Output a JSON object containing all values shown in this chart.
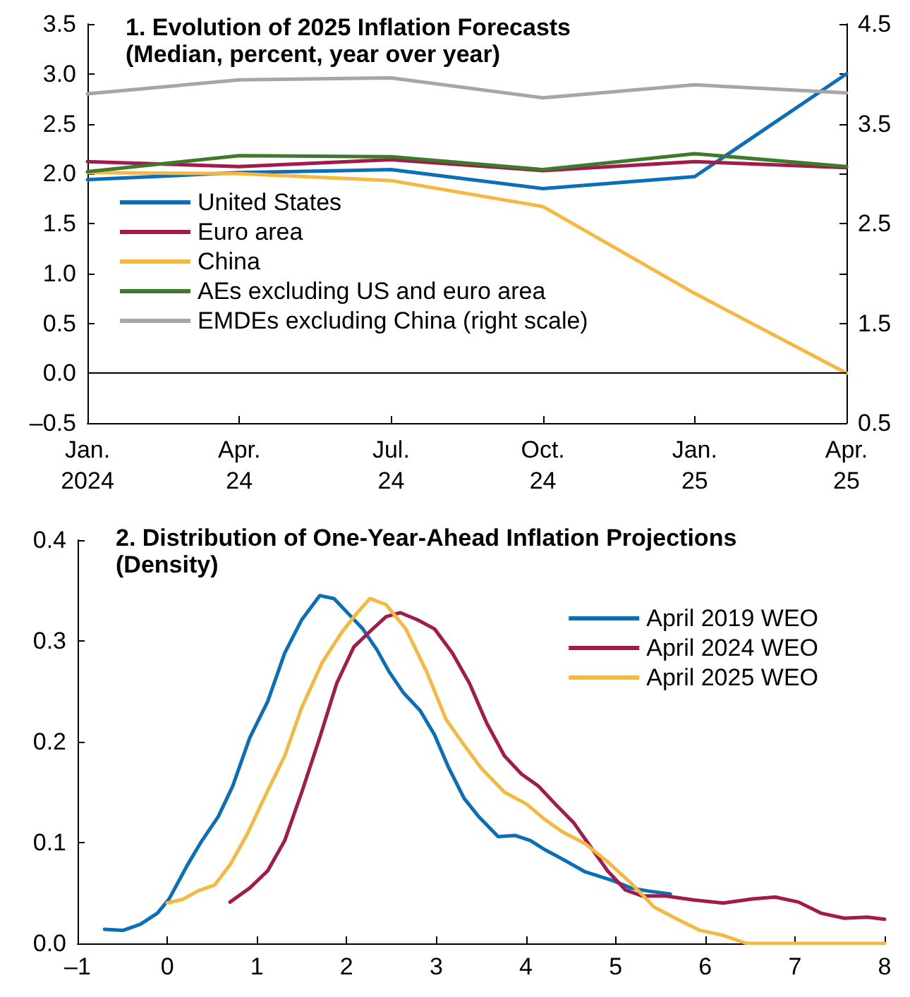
{
  "chart_data": [
    {
      "type": "line",
      "title": "1. Evolution of 2025 Inflation Forecasts",
      "subtitle": "(Median, percent, year over year)",
      "categories": [
        "Jan.\n2024",
        "Apr.\n24",
        "Jul.\n24",
        "Oct.\n24",
        "Jan.\n25",
        "Apr.\n25"
      ],
      "series": [
        {
          "name": "United States",
          "color": "#0b6fb8",
          "values": [
            1.94,
            2.01,
            2.04,
            1.85,
            1.97,
            3.0
          ]
        },
        {
          "name": "Euro area",
          "color": "#a31a4d",
          "values": [
            2.12,
            2.07,
            2.14,
            2.03,
            2.12,
            2.06
          ]
        },
        {
          "name": "China",
          "color": "#f5b841",
          "values": [
            2.01,
            2.0,
            1.93,
            1.67,
            0.8,
            0.0
          ]
        },
        {
          "name": "AEs excluding US and euro area",
          "color": "#3d7a2b",
          "values": [
            2.02,
            2.18,
            2.17,
            2.04,
            2.2,
            2.07
          ]
        },
        {
          "name": "EMDEs excluding China (right scale)",
          "color": "#a6a6a6",
          "axis": "y2",
          "values": [
            3.8,
            3.94,
            3.96,
            3.76,
            3.89,
            3.81
          ]
        }
      ],
      "ylim": [
        -0.5,
        3.5
      ],
      "yticks": [
        {
          "value": -0.5,
          "label": "–0.5"
        },
        {
          "value": 0,
          "label": "0.0"
        },
        0.5,
        {
          "value": 1,
          "label": "1.0"
        },
        1.5,
        {
          "value": 2,
          "label": "2.0"
        },
        2.5,
        {
          "value": 3,
          "label": "3.0"
        },
        3.5
      ],
      "y2lim": [
        0.5,
        4.5
      ],
      "y2ticks": [
        0.5,
        {
          "value": 1,
          "label": null
        },
        1.5,
        {
          "value": 2,
          "label": null
        },
        2.5,
        {
          "value": 3,
          "label": null
        },
        3.5,
        {
          "value": 4,
          "label": null
        },
        4.5
      ],
      "ref_lines": [
        {
          "axis": "y",
          "value": 0,
          "color": "#000000"
        }
      ],
      "grid": false,
      "legend": "left",
      "marker": "none",
      "line_style": "solid"
    },
    {
      "type": "line",
      "title": "2. Distribution of One-Year-Ahead Inflation Projections",
      "subtitle": "(Density)",
      "series": [
        {
          "name": "April 2019 WEO",
          "color": "#0b6fb8",
          "x": [
            -0.7,
            -0.49,
            -0.3,
            -0.11,
            0.02,
            0.22,
            0.38,
            0.57,
            0.73,
            0.92,
            1.12,
            1.31,
            1.5,
            1.7,
            1.86,
            2.02,
            2.18,
            2.34,
            2.47,
            2.63,
            2.82,
            2.98,
            3.14,
            3.31,
            3.47,
            3.69,
            3.88,
            4.05,
            4.21,
            4.4,
            4.66,
            4.98,
            5.17,
            5.36,
            5.61
          ],
          "values": [
            0.014,
            0.013,
            0.019,
            0.03,
            0.044,
            0.077,
            0.101,
            0.126,
            0.156,
            0.204,
            0.24,
            0.288,
            0.321,
            0.345,
            0.342,
            0.327,
            0.312,
            0.291,
            0.27,
            0.249,
            0.231,
            0.207,
            0.174,
            0.144,
            0.126,
            0.106,
            0.107,
            0.102,
            0.093,
            0.084,
            0.071,
            0.062,
            0.055,
            0.052,
            0.049
          ]
        },
        {
          "name": "April 2024 WEO",
          "color": "#a31a4d",
          "x": [
            0.7,
            0.92,
            1.12,
            1.31,
            1.5,
            1.7,
            1.89,
            2.08,
            2.28,
            2.44,
            2.6,
            2.79,
            2.98,
            3.18,
            3.37,
            3.56,
            3.76,
            3.95,
            4.14,
            4.33,
            4.53,
            4.72,
            4.91,
            5.11,
            5.3,
            5.56,
            5.88,
            6.2,
            6.52,
            6.78,
            7.04,
            7.29,
            7.55,
            7.81,
            8.0
          ],
          "values": [
            0.041,
            0.055,
            0.072,
            0.102,
            0.15,
            0.204,
            0.258,
            0.294,
            0.311,
            0.324,
            0.328,
            0.321,
            0.312,
            0.288,
            0.258,
            0.219,
            0.186,
            0.168,
            0.156,
            0.138,
            0.12,
            0.096,
            0.072,
            0.053,
            0.047,
            0.047,
            0.043,
            0.04,
            0.044,
            0.046,
            0.041,
            0.03,
            0.025,
            0.026,
            0.024
          ]
        },
        {
          "name": "April 2025 WEO",
          "color": "#f5b841",
          "x": [
            0.0,
            0.18,
            0.34,
            0.53,
            0.7,
            0.89,
            1.08,
            1.31,
            1.5,
            1.73,
            1.95,
            2.11,
            2.26,
            2.44,
            2.66,
            2.89,
            3.11,
            3.3,
            3.5,
            3.76,
            4.01,
            4.21,
            4.4,
            4.66,
            4.91,
            5.17,
            5.43,
            5.69,
            5.94,
            6.2,
            6.46,
            8.0
          ],
          "values": [
            0.04,
            0.044,
            0.052,
            0.058,
            0.078,
            0.108,
            0.144,
            0.186,
            0.234,
            0.279,
            0.309,
            0.327,
            0.342,
            0.336,
            0.312,
            0.27,
            0.222,
            0.198,
            0.174,
            0.15,
            0.138,
            0.123,
            0.111,
            0.099,
            0.081,
            0.06,
            0.036,
            0.024,
            0.013,
            0.008,
            0.0,
            0.0
          ]
        }
      ],
      "xlim": [
        -1,
        8
      ],
      "xticks": [
        {
          "value": -1,
          "label": "–1"
        },
        0,
        1,
        2,
        3,
        4,
        5,
        6,
        7,
        8
      ],
      "ylim": [
        0,
        0.4
      ],
      "yticks": [
        {
          "value": 0,
          "label": "0.0"
        },
        0.1,
        0.2,
        0.3,
        0.4
      ],
      "grid": false,
      "legend": "top right",
      "marker": "none",
      "line_style": "solid"
    }
  ]
}
